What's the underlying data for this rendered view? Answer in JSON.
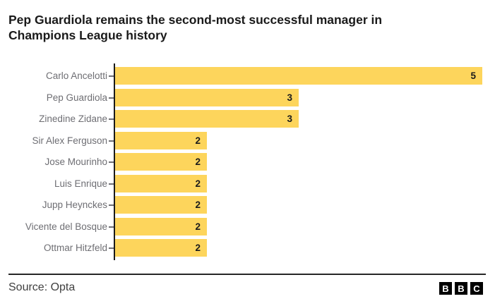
{
  "title": {
    "lines": [
      "Pep Guardiola remains the second-most successful manager in",
      "Champions League history"
    ]
  },
  "chart_data": {
    "type": "bar",
    "orientation": "horizontal",
    "title": "Pep Guardiola remains the second-most successful manager in Champions League history",
    "categories": [
      "Carlo Ancelotti",
      "Pep Guardiola",
      "Zinedine Zidane",
      "Sir Alex Ferguson",
      "Jose Mourinho",
      "Luis Enrique",
      "Jupp Heynckes",
      "Vicente del Bosque",
      "Ottmar Hitzfeld"
    ],
    "values": [
      5,
      3,
      3,
      2,
      2,
      2,
      2,
      2,
      2
    ],
    "xlabel": "",
    "ylabel": "",
    "xlim": [
      1,
      5
    ],
    "grid": false,
    "legend": "none",
    "value_labels": "inside-right",
    "bar_color": "#fdd55c"
  },
  "footer": {
    "source_label": "Source: Opta",
    "logo_letters": [
      "B",
      "B",
      "C"
    ]
  },
  "colors": {
    "bar": "#fdd55c",
    "title_text": "#1a1a1a",
    "axis_label_text": "#6e6e73",
    "value_text": "#1a1a1a",
    "axis_line": "#1a1a1a",
    "divider": "#262626",
    "source_text": "#404040",
    "logo_block": "#000000",
    "logo_letter": "#ffffff"
  }
}
